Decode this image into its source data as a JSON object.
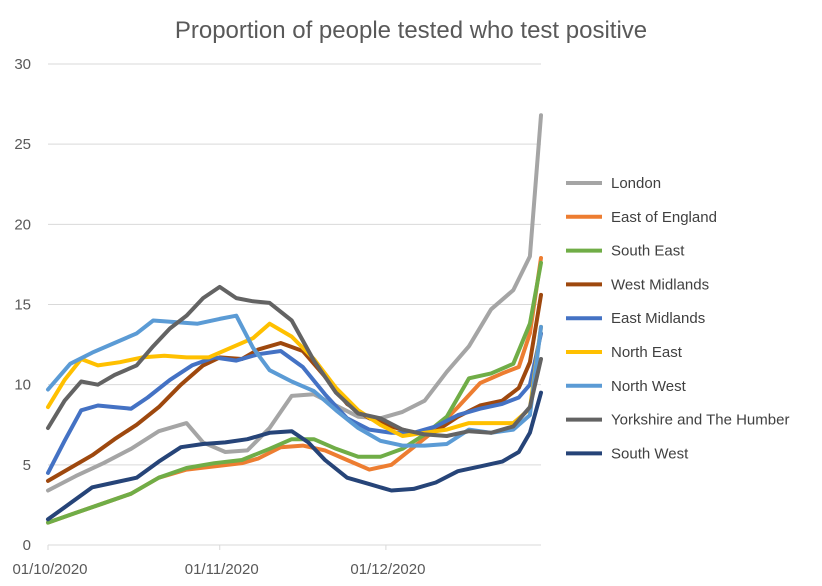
{
  "chart_data": {
    "type": "line",
    "title": "Proportion of people tested who test positive",
    "xlabel": "",
    "ylabel": "",
    "ylim": [
      0,
      30
    ],
    "yticks": [
      "0",
      "5",
      "10",
      "15",
      "20",
      "25",
      "30"
    ],
    "xticks": [
      "01/10/2020",
      "01/11/2020",
      "01/12/2020"
    ],
    "xlim_days": [
      0,
      89
    ],
    "xtick_days": [
      0,
      31,
      61
    ],
    "grid": true,
    "legend": "right",
    "series": [
      {
        "name": "London",
        "color": "#a5a5a5",
        "points": [
          [
            0,
            3.4
          ],
          [
            5,
            4.3
          ],
          [
            10,
            5.1
          ],
          [
            15,
            6.0
          ],
          [
            20,
            7.1
          ],
          [
            25,
            7.6
          ],
          [
            28,
            6.4
          ],
          [
            32,
            5.8
          ],
          [
            36,
            5.9
          ],
          [
            40,
            7.3
          ],
          [
            44,
            9.3
          ],
          [
            48,
            9.4
          ],
          [
            52,
            8.7
          ],
          [
            56,
            8.0
          ],
          [
            60,
            7.9
          ],
          [
            64,
            8.3
          ],
          [
            68,
            9.0
          ],
          [
            72,
            10.8
          ],
          [
            76,
            12.4
          ],
          [
            80,
            14.7
          ],
          [
            84,
            15.9
          ],
          [
            87,
            18.0
          ],
          [
            89,
            26.8
          ]
        ]
      },
      {
        "name": "East of England",
        "color": "#ed7d31",
        "points": [
          [
            0,
            1.4
          ],
          [
            5,
            2.0
          ],
          [
            10,
            2.6
          ],
          [
            15,
            3.2
          ],
          [
            20,
            4.2
          ],
          [
            25,
            4.7
          ],
          [
            30,
            4.9
          ],
          [
            35,
            5.1
          ],
          [
            38,
            5.4
          ],
          [
            42,
            6.1
          ],
          [
            46,
            6.2
          ],
          [
            50,
            5.9
          ],
          [
            54,
            5.3
          ],
          [
            58,
            4.7
          ],
          [
            62,
            5.0
          ],
          [
            66,
            6.1
          ],
          [
            70,
            7.2
          ],
          [
            74,
            8.6
          ],
          [
            78,
            10.1
          ],
          [
            82,
            10.7
          ],
          [
            85,
            11.1
          ],
          [
            87,
            13.2
          ],
          [
            89,
            17.9
          ]
        ]
      },
      {
        "name": "South East",
        "color": "#70ad47",
        "points": [
          [
            0,
            1.4
          ],
          [
            5,
            2.0
          ],
          [
            10,
            2.6
          ],
          [
            15,
            3.2
          ],
          [
            20,
            4.2
          ],
          [
            25,
            4.8
          ],
          [
            30,
            5.1
          ],
          [
            35,
            5.3
          ],
          [
            40,
            6.0
          ],
          [
            44,
            6.6
          ],
          [
            48,
            6.6
          ],
          [
            52,
            6.0
          ],
          [
            56,
            5.5
          ],
          [
            60,
            5.5
          ],
          [
            64,
            6.0
          ],
          [
            68,
            6.9
          ],
          [
            72,
            8.0
          ],
          [
            76,
            10.4
          ],
          [
            80,
            10.7
          ],
          [
            84,
            11.3
          ],
          [
            87,
            13.8
          ],
          [
            89,
            17.6
          ]
        ]
      },
      {
        "name": "West Midlands",
        "color": "#9e480e",
        "points": [
          [
            0,
            4.0
          ],
          [
            4,
            4.8
          ],
          [
            8,
            5.6
          ],
          [
            12,
            6.6
          ],
          [
            16,
            7.5
          ],
          [
            20,
            8.6
          ],
          [
            24,
            10.0
          ],
          [
            28,
            11.2
          ],
          [
            31,
            11.7
          ],
          [
            35,
            11.6
          ],
          [
            38,
            12.2
          ],
          [
            42,
            12.6
          ],
          [
            46,
            12.1
          ],
          [
            50,
            10.5
          ],
          [
            54,
            8.8
          ],
          [
            58,
            7.9
          ],
          [
            62,
            7.4
          ],
          [
            66,
            7.0
          ],
          [
            70,
            7.1
          ],
          [
            74,
            8.0
          ],
          [
            78,
            8.7
          ],
          [
            82,
            9.0
          ],
          [
            85,
            9.8
          ],
          [
            87,
            11.4
          ],
          [
            89,
            15.6
          ]
        ]
      },
      {
        "name": "East Midlands",
        "color": "#4472c4",
        "points": [
          [
            0,
            4.5
          ],
          [
            3,
            6.5
          ],
          [
            6,
            8.4
          ],
          [
            9,
            8.7
          ],
          [
            12,
            8.6
          ],
          [
            15,
            8.5
          ],
          [
            18,
            9.2
          ],
          [
            22,
            10.3
          ],
          [
            26,
            11.2
          ],
          [
            30,
            11.7
          ],
          [
            34,
            11.5
          ],
          [
            38,
            11.9
          ],
          [
            42,
            12.1
          ],
          [
            46,
            11.1
          ],
          [
            50,
            9.4
          ],
          [
            54,
            7.9
          ],
          [
            58,
            7.2
          ],
          [
            62,
            7.0
          ],
          [
            66,
            7.0
          ],
          [
            70,
            7.4
          ],
          [
            74,
            8.1
          ],
          [
            78,
            8.5
          ],
          [
            82,
            8.8
          ],
          [
            85,
            9.2
          ],
          [
            87,
            10.0
          ],
          [
            89,
            13.2
          ]
        ]
      },
      {
        "name": "North East",
        "color": "#ffc000",
        "points": [
          [
            0,
            8.6
          ],
          [
            3,
            10.3
          ],
          [
            6,
            11.6
          ],
          [
            9,
            11.2
          ],
          [
            13,
            11.4
          ],
          [
            17,
            11.7
          ],
          [
            21,
            11.8
          ],
          [
            25,
            11.7
          ],
          [
            29,
            11.7
          ],
          [
            33,
            12.3
          ],
          [
            37,
            12.9
          ],
          [
            40,
            13.8
          ],
          [
            44,
            13.0
          ],
          [
            48,
            11.6
          ],
          [
            52,
            9.8
          ],
          [
            56,
            8.4
          ],
          [
            60,
            7.5
          ],
          [
            64,
            6.8
          ],
          [
            68,
            7.0
          ],
          [
            72,
            7.2
          ],
          [
            76,
            7.6
          ],
          [
            80,
            7.6
          ],
          [
            84,
            7.6
          ],
          [
            87,
            8.5
          ],
          [
            89,
            13.6
          ]
        ]
      },
      {
        "name": "North West",
        "color": "#5b9bd5",
        "points": [
          [
            0,
            9.7
          ],
          [
            4,
            11.3
          ],
          [
            8,
            12.0
          ],
          [
            12,
            12.6
          ],
          [
            16,
            13.2
          ],
          [
            19,
            14.0
          ],
          [
            23,
            13.9
          ],
          [
            27,
            13.8
          ],
          [
            31,
            14.1
          ],
          [
            34,
            14.3
          ],
          [
            37,
            12.3
          ],
          [
            40,
            10.9
          ],
          [
            44,
            10.2
          ],
          [
            48,
            9.6
          ],
          [
            52,
            8.4
          ],
          [
            56,
            7.3
          ],
          [
            60,
            6.5
          ],
          [
            64,
            6.2
          ],
          [
            68,
            6.2
          ],
          [
            72,
            6.3
          ],
          [
            76,
            7.2
          ],
          [
            80,
            7.0
          ],
          [
            84,
            7.2
          ],
          [
            87,
            8.1
          ],
          [
            89,
            13.6
          ]
        ]
      },
      {
        "name": "Yorkshire and The Humber",
        "color": "#636363",
        "points": [
          [
            0,
            7.3
          ],
          [
            3,
            9.0
          ],
          [
            6,
            10.2
          ],
          [
            9,
            10.0
          ],
          [
            12,
            10.6
          ],
          [
            16,
            11.2
          ],
          [
            19,
            12.4
          ],
          [
            22,
            13.5
          ],
          [
            25,
            14.3
          ],
          [
            28,
            15.4
          ],
          [
            31,
            16.1
          ],
          [
            34,
            15.4
          ],
          [
            37,
            15.2
          ],
          [
            40,
            15.1
          ],
          [
            44,
            14.0
          ],
          [
            48,
            11.5
          ],
          [
            52,
            9.5
          ],
          [
            56,
            8.2
          ],
          [
            60,
            7.9
          ],
          [
            64,
            7.2
          ],
          [
            68,
            6.9
          ],
          [
            72,
            6.8
          ],
          [
            76,
            7.1
          ],
          [
            80,
            7.0
          ],
          [
            84,
            7.4
          ],
          [
            87,
            8.6
          ],
          [
            89,
            11.6
          ]
        ]
      },
      {
        "name": "South West",
        "color": "#264478",
        "points": [
          [
            0,
            1.6
          ],
          [
            4,
            2.6
          ],
          [
            8,
            3.6
          ],
          [
            12,
            3.9
          ],
          [
            16,
            4.2
          ],
          [
            20,
            5.2
          ],
          [
            24,
            6.1
          ],
          [
            28,
            6.3
          ],
          [
            32,
            6.4
          ],
          [
            36,
            6.6
          ],
          [
            40,
            7.0
          ],
          [
            44,
            7.1
          ],
          [
            47,
            6.4
          ],
          [
            50,
            5.3
          ],
          [
            54,
            4.2
          ],
          [
            58,
            3.8
          ],
          [
            62,
            3.4
          ],
          [
            66,
            3.5
          ],
          [
            70,
            3.9
          ],
          [
            74,
            4.6
          ],
          [
            78,
            4.9
          ],
          [
            82,
            5.2
          ],
          [
            85,
            5.8
          ],
          [
            87,
            7.0
          ],
          [
            89,
            9.5
          ]
        ]
      }
    ]
  }
}
